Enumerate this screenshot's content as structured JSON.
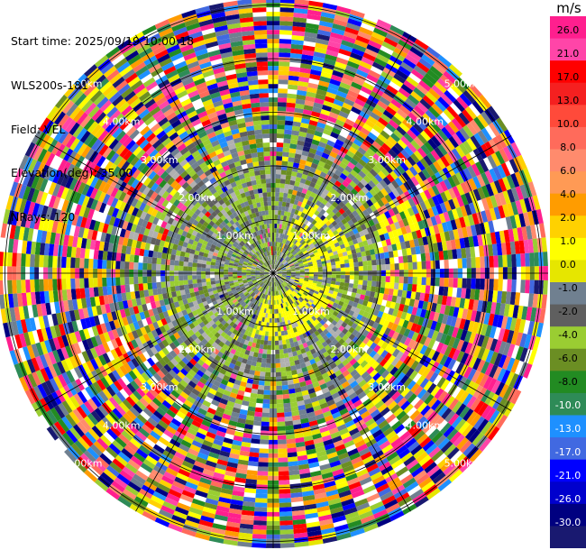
{
  "header": {
    "start_time": "Start time: 2025/09/19 10:00:18",
    "site": "WLS200s-181",
    "field": "Field: VEL",
    "elevation": "Elevation(deg): 35.00",
    "nrays": "NRays: 120"
  },
  "chart_data": {
    "type": "ppi-polar",
    "field": "VEL",
    "nrays": 120,
    "ring_labels": [
      "1.00km",
      "2.00km",
      "3.00km",
      "4.00km",
      "5.00km"
    ],
    "range_max_km": 5.0,
    "colorbar": {
      "unit": "m/s",
      "ticks": [
        "26.0",
        "21.0",
        "17.0",
        "13.0",
        "10.0",
        "8.0",
        "6.0",
        "4.0",
        "2.0",
        "1.0",
        "0.0",
        "-1.0",
        "-2.0",
        "-4.0",
        "-6.0",
        "-8.0",
        "-10.0",
        "-13.0",
        "-17.0",
        "-21.0",
        "-26.0",
        "-30.0"
      ],
      "colors": [
        "#ff1f8e",
        "#ff45a8",
        "#ff0000",
        "#f52020",
        "#ff4a3a",
        "#ff6b5b",
        "#ff8b6d",
        "#ff9a55",
        "#ff9c00",
        "#ffd100",
        "#ffff00",
        "#e6e600",
        "#708090",
        "#5f5f5f",
        "#9acd32",
        "#6b8e23",
        "#228b22",
        "#2e8b57",
        "#1e90ff",
        "#4169e1",
        "#0000ff",
        "#0000cd",
        "#000080",
        "#191970"
      ]
    }
  }
}
